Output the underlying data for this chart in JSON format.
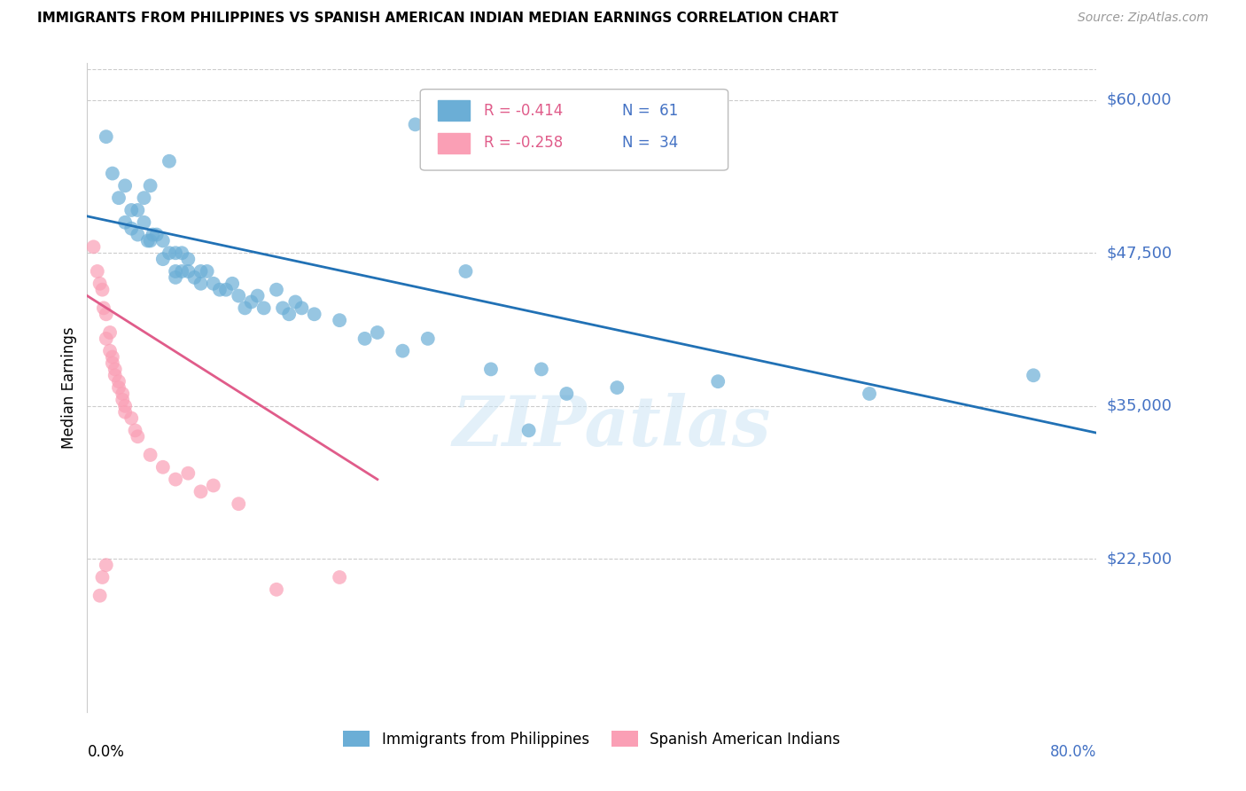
{
  "title": "IMMIGRANTS FROM PHILIPPINES VS SPANISH AMERICAN INDIAN MEDIAN EARNINGS CORRELATION CHART",
  "source": "Source: ZipAtlas.com",
  "ylabel": "Median Earnings",
  "watermark": "ZIPatlas",
  "y_tick_labels": [
    "$60,000",
    "$47,500",
    "$35,000",
    "$22,500"
  ],
  "y_tick_values": [
    60000,
    47500,
    35000,
    22500
  ],
  "y_min": 10000,
  "y_max": 63000,
  "x_min": 0.0,
  "x_max": 0.8,
  "legend_r1": "R = -0.414",
  "legend_n1": "N =  61",
  "legend_r2": "R = -0.258",
  "legend_n2": "N =  34",
  "blue_color": "#6baed6",
  "pink_color": "#fa9fb5",
  "blue_line_color": "#2171b5",
  "pink_line_color": "#e05c8a",
  "axis_label_color": "#4472c4",
  "blue_scatter": [
    [
      0.015,
      57000
    ],
    [
      0.02,
      54000
    ],
    [
      0.025,
      52000
    ],
    [
      0.03,
      53000
    ],
    [
      0.03,
      50000
    ],
    [
      0.035,
      51000
    ],
    [
      0.035,
      49500
    ],
    [
      0.04,
      51000
    ],
    [
      0.04,
      49000
    ],
    [
      0.045,
      52000
    ],
    [
      0.045,
      50000
    ],
    [
      0.048,
      48500
    ],
    [
      0.05,
      53000
    ],
    [
      0.05,
      48500
    ],
    [
      0.052,
      49000
    ],
    [
      0.055,
      49000
    ],
    [
      0.06,
      48500
    ],
    [
      0.06,
      47000
    ],
    [
      0.065,
      55000
    ],
    [
      0.065,
      47500
    ],
    [
      0.07,
      47500
    ],
    [
      0.07,
      46000
    ],
    [
      0.07,
      45500
    ],
    [
      0.075,
      47500
    ],
    [
      0.075,
      46000
    ],
    [
      0.08,
      47000
    ],
    [
      0.08,
      46000
    ],
    [
      0.085,
      45500
    ],
    [
      0.09,
      46000
    ],
    [
      0.09,
      45000
    ],
    [
      0.095,
      46000
    ],
    [
      0.1,
      45000
    ],
    [
      0.105,
      44500
    ],
    [
      0.11,
      44500
    ],
    [
      0.115,
      45000
    ],
    [
      0.12,
      44000
    ],
    [
      0.125,
      43000
    ],
    [
      0.13,
      43500
    ],
    [
      0.135,
      44000
    ],
    [
      0.14,
      43000
    ],
    [
      0.15,
      44500
    ],
    [
      0.155,
      43000
    ],
    [
      0.16,
      42500
    ],
    [
      0.165,
      43500
    ],
    [
      0.17,
      43000
    ],
    [
      0.18,
      42500
    ],
    [
      0.2,
      42000
    ],
    [
      0.22,
      40500
    ],
    [
      0.23,
      41000
    ],
    [
      0.25,
      39500
    ],
    [
      0.26,
      58000
    ],
    [
      0.27,
      40500
    ],
    [
      0.3,
      46000
    ],
    [
      0.32,
      38000
    ],
    [
      0.35,
      33000
    ],
    [
      0.36,
      38000
    ],
    [
      0.38,
      36000
    ],
    [
      0.42,
      36500
    ],
    [
      0.5,
      37000
    ],
    [
      0.62,
      36000
    ],
    [
      0.75,
      37500
    ]
  ],
  "pink_scatter": [
    [
      0.005,
      48000
    ],
    [
      0.008,
      46000
    ],
    [
      0.01,
      45000
    ],
    [
      0.012,
      44500
    ],
    [
      0.013,
      43000
    ],
    [
      0.015,
      42500
    ],
    [
      0.015,
      40500
    ],
    [
      0.018,
      41000
    ],
    [
      0.018,
      39500
    ],
    [
      0.02,
      39000
    ],
    [
      0.02,
      38500
    ],
    [
      0.022,
      38000
    ],
    [
      0.022,
      37500
    ],
    [
      0.025,
      37000
    ],
    [
      0.025,
      36500
    ],
    [
      0.028,
      36000
    ],
    [
      0.028,
      35500
    ],
    [
      0.03,
      35000
    ],
    [
      0.03,
      34500
    ],
    [
      0.035,
      34000
    ],
    [
      0.038,
      33000
    ],
    [
      0.04,
      32500
    ],
    [
      0.05,
      31000
    ],
    [
      0.06,
      30000
    ],
    [
      0.07,
      29000
    ],
    [
      0.08,
      29500
    ],
    [
      0.09,
      28000
    ],
    [
      0.1,
      28500
    ],
    [
      0.12,
      27000
    ],
    [
      0.15,
      20000
    ],
    [
      0.2,
      21000
    ],
    [
      0.015,
      22000
    ],
    [
      0.012,
      21000
    ],
    [
      0.01,
      19500
    ]
  ],
  "blue_trendline": [
    [
      0.0,
      50500
    ],
    [
      0.8,
      32800
    ]
  ],
  "pink_trendline": [
    [
      0.0,
      44000
    ],
    [
      0.23,
      29000
    ]
  ]
}
